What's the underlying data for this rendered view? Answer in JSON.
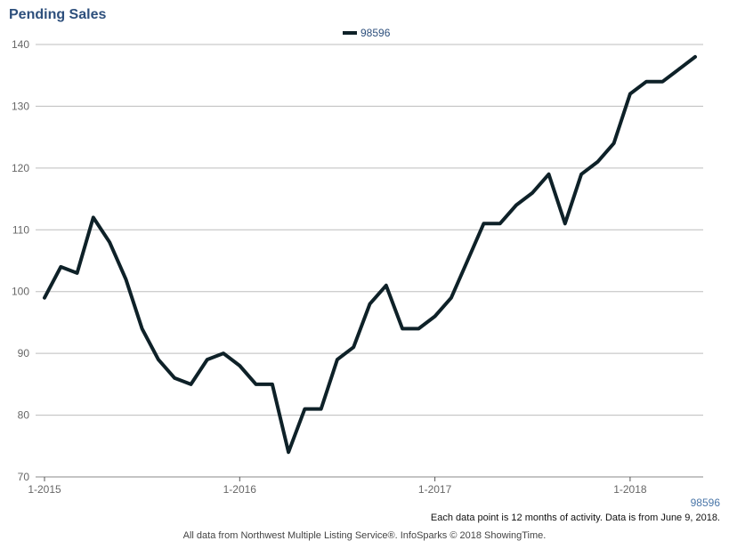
{
  "title": "Pending Sales",
  "corner_label": "98596",
  "note": "Each data point is 12 months of activity. Data is from June 9, 2018.",
  "footer": "All data from Northwest Multiple Listing Service®. InfoSparks © 2018 ShowingTime.",
  "colors": {
    "line": "#0e2128",
    "title": "#2d4f7c",
    "grid": "#bdbdbd"
  },
  "chart_data": {
    "type": "line",
    "title": "Pending Sales",
    "xlabel": "",
    "ylabel": "",
    "ylim": [
      70,
      140
    ],
    "yticks": [
      70,
      80,
      90,
      100,
      110,
      120,
      130,
      140
    ],
    "xticks": [
      {
        "label": "1-2015",
        "month": "2015-01"
      },
      {
        "label": "1-2016",
        "month": "2016-01"
      },
      {
        "label": "1-2017",
        "month": "2017-01"
      },
      {
        "label": "1-2018",
        "month": "2018-01"
      }
    ],
    "grid": true,
    "legend_position": "top-center",
    "x": [
      "2015-01",
      "2015-02",
      "2015-03",
      "2015-04",
      "2015-05",
      "2015-06",
      "2015-07",
      "2015-08",
      "2015-09",
      "2015-10",
      "2015-11",
      "2015-12",
      "2016-01",
      "2016-02",
      "2016-03",
      "2016-04",
      "2016-05",
      "2016-06",
      "2016-07",
      "2016-08",
      "2016-09",
      "2016-10",
      "2016-11",
      "2016-12",
      "2017-01",
      "2017-02",
      "2017-03",
      "2017-04",
      "2017-05",
      "2017-06",
      "2017-07",
      "2017-08",
      "2017-09",
      "2017-10",
      "2017-11",
      "2017-12",
      "2018-01",
      "2018-02",
      "2018-03",
      "2018-04",
      "2018-05"
    ],
    "series": [
      {
        "name": "98596",
        "values": [
          99,
          104,
          103,
          112,
          108,
          102,
          94,
          89,
          86,
          85,
          89,
          90,
          88,
          85,
          85,
          74,
          81,
          81,
          89,
          91,
          98,
          101,
          94,
          94,
          96,
          99,
          105,
          111,
          111,
          114,
          116,
          119,
          111,
          119,
          121,
          124,
          132,
          134,
          134,
          136,
          138
        ]
      }
    ]
  }
}
